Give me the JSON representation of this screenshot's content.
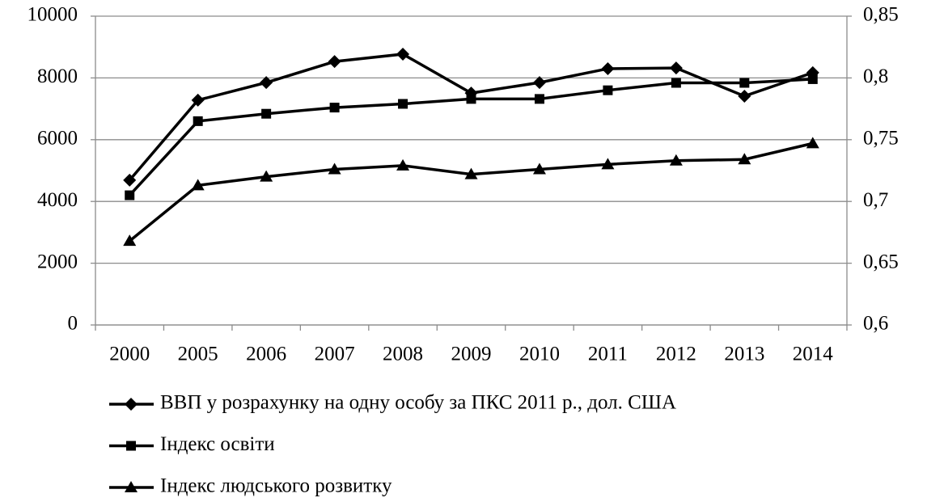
{
  "chart_data": {
    "type": "line",
    "categories": [
      "2000",
      "2005",
      "2006",
      "2007",
      "2008",
      "2009",
      "2010",
      "2011",
      "2012",
      "2013",
      "2014"
    ],
    "series": [
      {
        "name": "ВВП у розрахунку на одну особу за ПКС 2011 р., дол. США",
        "color": "#000000",
        "marker": "diamond",
        "axis": "y",
        "values": [
          4690,
          7280,
          7850,
          8530,
          8770,
          7510,
          7850,
          8300,
          8320,
          7410,
          8170
        ]
      },
      {
        "name": "Індекс освіти",
        "color": "#000000",
        "marker": "square",
        "axis": "y2",
        "values": [
          0.705,
          0.765,
          0.771,
          0.776,
          0.779,
          0.783,
          0.783,
          0.79,
          0.796,
          0.796,
          0.799
        ]
      },
      {
        "name": "Індекс людського розвитку",
        "color": "#000000",
        "marker": "triangle",
        "axis": "y2",
        "values": [
          0.668,
          0.713,
          0.72,
          0.726,
          0.729,
          0.722,
          0.726,
          0.73,
          0.733,
          0.734,
          0.747
        ]
      }
    ],
    "ylim": [
      0,
      10000
    ],
    "yticks": [
      0,
      2000,
      4000,
      6000,
      8000,
      10000
    ],
    "y2lim": [
      0.6,
      0.85
    ],
    "y2ticks": [
      {
        "value": 0.6,
        "label": "0,6"
      },
      {
        "value": 0.65,
        "label": "0,65"
      },
      {
        "value": 0.7,
        "label": "0,7"
      },
      {
        "value": 0.75,
        "label": "0,75"
      },
      {
        "value": 0.8,
        "label": "0,8"
      },
      {
        "value": 0.85,
        "label": "0,85"
      }
    ],
    "grid": true,
    "legend": "bottom"
  }
}
